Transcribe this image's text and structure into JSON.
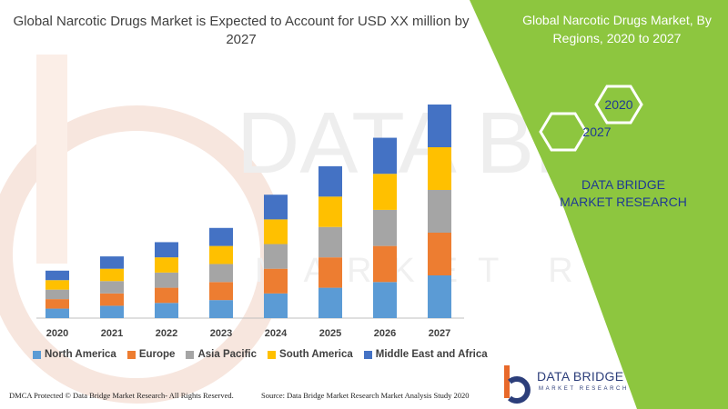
{
  "chart_data": {
    "type": "bar",
    "stacked": true,
    "title": "Global Narcotic Drugs Market is Expected to Account for USD XX million by 2027",
    "categories": [
      "2020",
      "2021",
      "2022",
      "2023",
      "2024",
      "2025",
      "2026",
      "2027"
    ],
    "series": [
      {
        "name": "North America",
        "color": "#5b9bd5",
        "values": [
          1.0,
          1.3,
          1.6,
          1.9,
          2.6,
          3.2,
          3.8,
          4.5
        ]
      },
      {
        "name": "Europe",
        "color": "#ed7d31",
        "values": [
          1.0,
          1.3,
          1.6,
          1.9,
          2.6,
          3.2,
          3.8,
          4.5
        ]
      },
      {
        "name": "Asia Pacific",
        "color": "#a5a5a5",
        "values": [
          1.0,
          1.3,
          1.6,
          1.9,
          2.6,
          3.2,
          3.8,
          4.5
        ]
      },
      {
        "name": "South America",
        "color": "#ffc000",
        "values": [
          1.0,
          1.3,
          1.6,
          1.9,
          2.6,
          3.2,
          3.8,
          4.5
        ]
      },
      {
        "name": "Middle East and Africa",
        "color": "#4472c4",
        "values": [
          1.0,
          1.3,
          1.6,
          1.9,
          2.6,
          3.2,
          3.8,
          4.5
        ]
      }
    ],
    "legend": "bottom",
    "grid": false,
    "y_axis_visible": false
  },
  "side_panel": {
    "title": "Global Narcotic Drugs Market, By Regions, 2020 to 2027",
    "hex_top": "2020",
    "hex_bottom": "2027",
    "brand": "DATA BRIDGE MARKET RESEARCH",
    "accent": "#8dc63f"
  },
  "logo": {
    "name": "DATA BRIDGE",
    "sub": "MARKET RESEARCH"
  },
  "watermark": {
    "line1": "DATA BRIDGE",
    "line2": "MARKET RESEARCH"
  },
  "footer": {
    "left": "DMCA Protected © Data Bridge Market Research- All Rights Reserved.",
    "right": "Source: Data Bridge Market Research Market Analysis Study 2020"
  }
}
